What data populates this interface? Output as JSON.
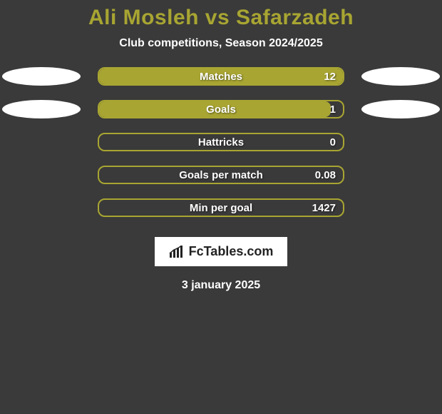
{
  "title": "Ali Mosleh vs Safarzadeh",
  "subtitle": "Club competitions, Season 2024/2025",
  "date": "3 january 2025",
  "source": "FcTables.com",
  "colors": {
    "accent": "#a8a532",
    "background": "#3a3a3a",
    "text": "#ffffff",
    "badge_bg": "#ffffff",
    "badge_text": "#222222"
  },
  "stats": [
    {
      "label": "Matches",
      "value": "12",
      "fill_pct": 100,
      "show_ellipses": true
    },
    {
      "label": "Goals",
      "value": "1",
      "fill_pct": 95,
      "show_ellipses": true
    },
    {
      "label": "Hattricks",
      "value": "0",
      "fill_pct": 0,
      "show_ellipses": false
    },
    {
      "label": "Goals per match",
      "value": "0.08",
      "fill_pct": 0,
      "show_ellipses": false
    },
    {
      "label": "Min per goal",
      "value": "1427",
      "fill_pct": 0,
      "show_ellipses": false
    }
  ]
}
